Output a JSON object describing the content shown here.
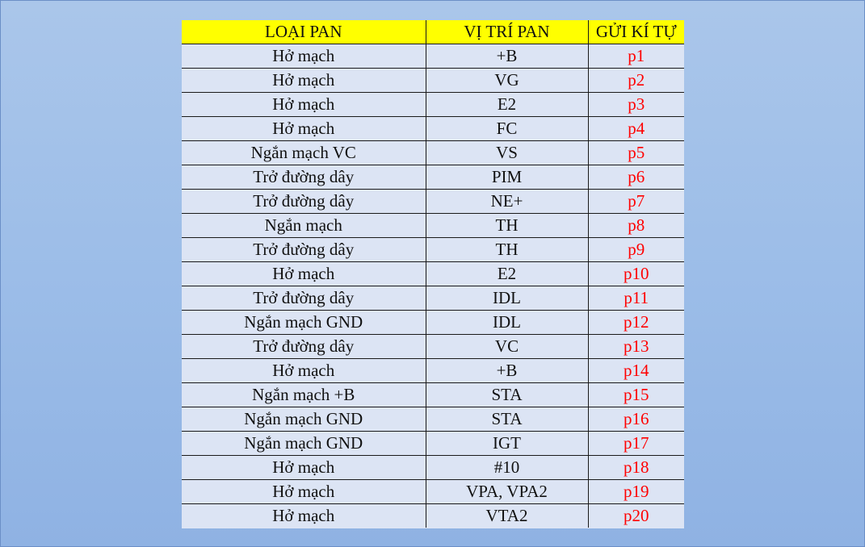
{
  "table": {
    "headers": [
      "LOẠI PAN",
      "VỊ TRÍ PAN",
      "GỬI KÍ TỰ"
    ],
    "rows": [
      [
        "Hở mạch",
        "+B",
        "p1"
      ],
      [
        "Hở mạch",
        "VG",
        "p2"
      ],
      [
        "Hở mạch",
        "E2",
        "p3"
      ],
      [
        "Hở mạch",
        "FC",
        "p4"
      ],
      [
        "Ngắn mạch VC",
        "VS",
        "p5"
      ],
      [
        "Trở đường dây",
        "PIM",
        "p6"
      ],
      [
        "Trở đường dây",
        "NE+",
        "p7"
      ],
      [
        "Ngắn mạch",
        "TH",
        "p8"
      ],
      [
        "Trở đường dây",
        "TH",
        "p9"
      ],
      [
        "Hở mạch",
        "E2",
        "p10"
      ],
      [
        "Trở đường dây",
        "IDL",
        "p11"
      ],
      [
        "Ngắn mạch GND",
        "IDL",
        "p12"
      ],
      [
        "Trở đường dây",
        "VC",
        "p13"
      ],
      [
        "Hở mạch",
        "+B",
        "p14"
      ],
      [
        "Ngắn mạch +B",
        "STA",
        "p15"
      ],
      [
        "Ngắn mạch GND",
        "STA",
        "p16"
      ],
      [
        "Ngắn mạch GND",
        "IGT",
        "p17"
      ],
      [
        "Hở mạch",
        "#10",
        "p18"
      ],
      [
        "Hở mạch",
        "VPA, VPA2",
        "p19"
      ],
      [
        "Hở mạch",
        "VTA2",
        "p20"
      ]
    ]
  },
  "colors": {
    "header_bg": "#ffff00",
    "cell_bg": "#dce4f4",
    "code_text": "#ff0000",
    "slide_bg": "#9cbde8"
  }
}
